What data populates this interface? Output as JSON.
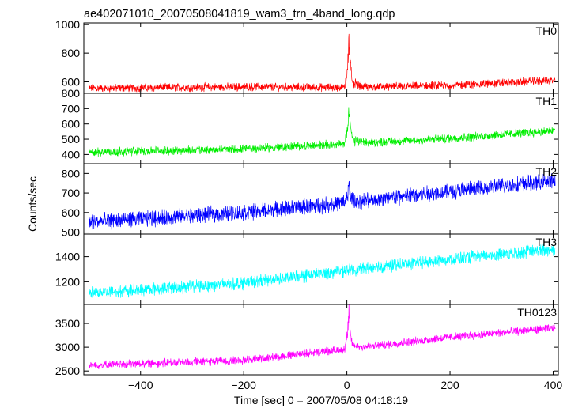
{
  "chart_data": {
    "type": "line",
    "title": "ae402071010_20070508041819_wam3_trn_4band_long.qdp",
    "xlabel": "Time [sec] 0 = 2007/05/08 04:18:19",
    "ylabel": "Counts/sec",
    "xlim": [
      -510,
      410
    ],
    "x_ticks": [
      -400,
      -200,
      0,
      200,
      400
    ],
    "grid": false,
    "panels": [
      {
        "name": "TH0",
        "color": "#ff0000",
        "ylim": [
          520,
          1010
        ],
        "y_ticks": [
          600,
          800,
          1000
        ],
        "baseline": [
          [
            -500,
            555
          ],
          [
            -200,
            565
          ],
          [
            0,
            560
          ],
          [
            200,
            575
          ],
          [
            400,
            610
          ]
        ],
        "noise": 45,
        "peak": 1010
      },
      {
        "name": "TH1",
        "color": "#00ee00",
        "ylim": [
          340,
          800
        ],
        "y_ticks": [
          400,
          500,
          600,
          700,
          800
        ],
        "baseline": [
          [
            -500,
            415
          ],
          [
            -200,
            435
          ],
          [
            0,
            470
          ],
          [
            200,
            505
          ],
          [
            400,
            555
          ]
        ],
        "noise": 45,
        "peak": 800
      },
      {
        "name": "TH2",
        "color": "#0000ff",
        "ylim": [
          490,
          850
        ],
        "y_ticks": [
          500,
          600,
          700,
          800
        ],
        "baseline": [
          [
            -500,
            550
          ],
          [
            -200,
            600
          ],
          [
            0,
            650
          ],
          [
            200,
            710
          ],
          [
            400,
            760
          ]
        ],
        "noise": 65,
        "peak": 760
      },
      {
        "name": "TH3",
        "color": "#00ffff",
        "ylim": [
          1020,
          1580
        ],
        "y_ticks": [
          1200,
          1400
        ],
        "baseline": [
          [
            -500,
            1110
          ],
          [
            -200,
            1190
          ],
          [
            0,
            1290
          ],
          [
            200,
            1380
          ],
          [
            400,
            1460
          ]
        ],
        "noise": 80,
        "peak": 1460
      },
      {
        "name": "TH0123",
        "color": "#ff00ff",
        "ylim": [
          2420,
          3900
        ],
        "y_ticks": [
          2500,
          3000,
          3500
        ],
        "baseline": [
          [
            -500,
            2620
          ],
          [
            -200,
            2730
          ],
          [
            0,
            2960
          ],
          [
            200,
            3210
          ],
          [
            400,
            3400
          ]
        ],
        "noise": 140,
        "peak": 3900
      }
    ]
  }
}
